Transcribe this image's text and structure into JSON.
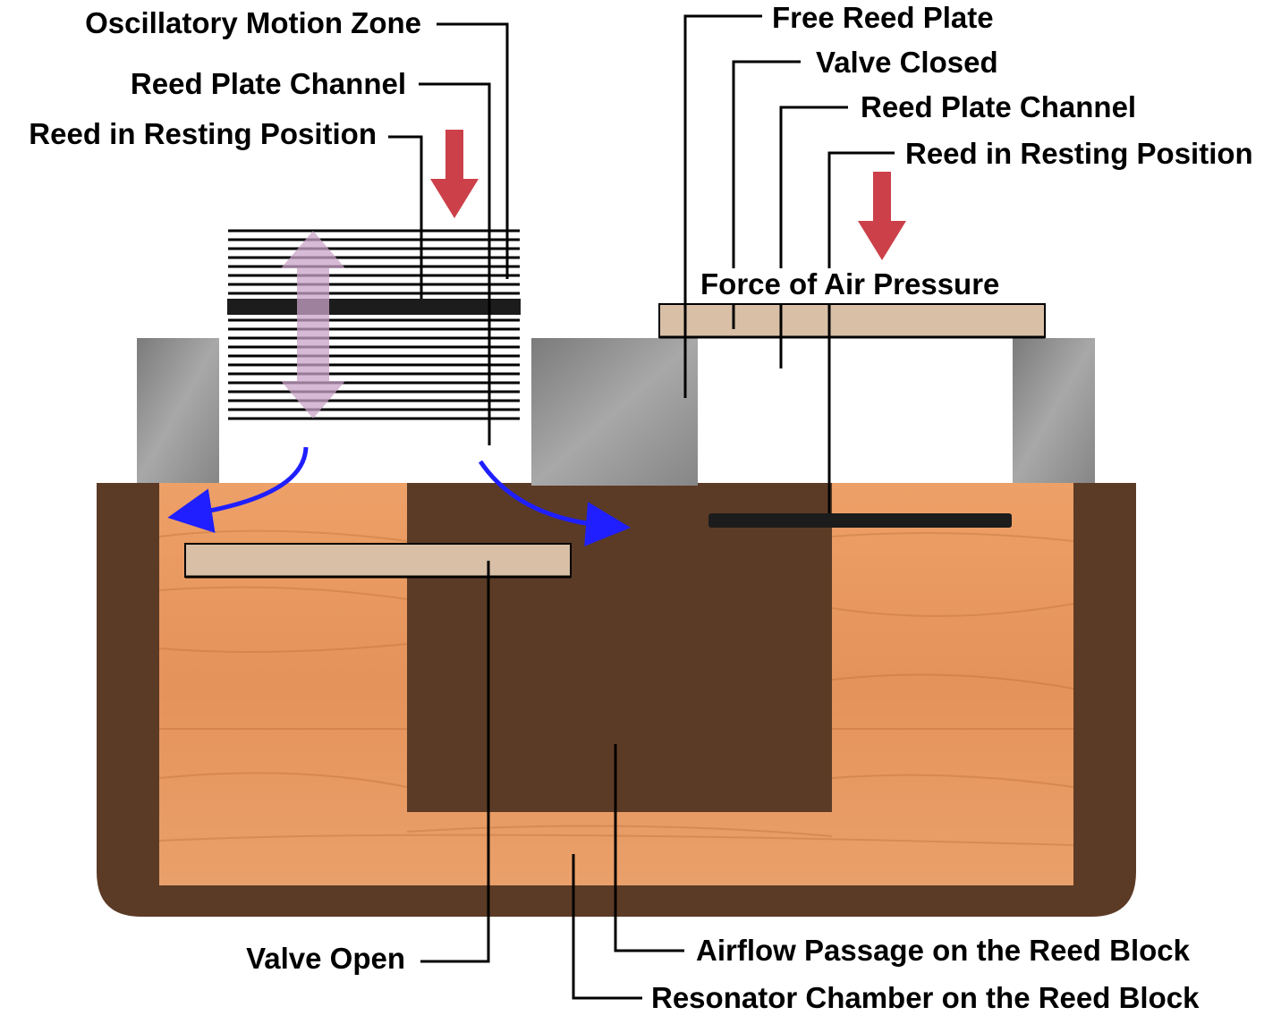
{
  "diagram": {
    "labels": {
      "oscillatory_motion_zone": "Oscillatory Motion Zone",
      "reed_plate_channel_left": "Reed Plate Channel",
      "reed_resting_left": "Reed in Resting Position",
      "free_reed_plate": "Free Reed Plate",
      "valve_closed": "Valve Closed",
      "reed_plate_channel_right": "Reed Plate Channel",
      "reed_resting_right": "Reed in Resting Position",
      "force_of_air_pressure": "Force of Air Pressure",
      "valve_open": "Valve Open",
      "airflow_passage": "Airflow Passage on the Reed Block",
      "resonator_chamber": "Resonator Chamber on the Reed Block"
    },
    "colors": {
      "wood": "#e79a5c",
      "wood_dark": "#b86a32",
      "frame": "#5c3b26",
      "metal": "#8e8e8e",
      "valve_leather": "#d8bfa6",
      "pressure_arrow": "#cc4049",
      "airflow_arrow": "#1f1fff",
      "motion_arrow": "#c9a3c8"
    }
  }
}
